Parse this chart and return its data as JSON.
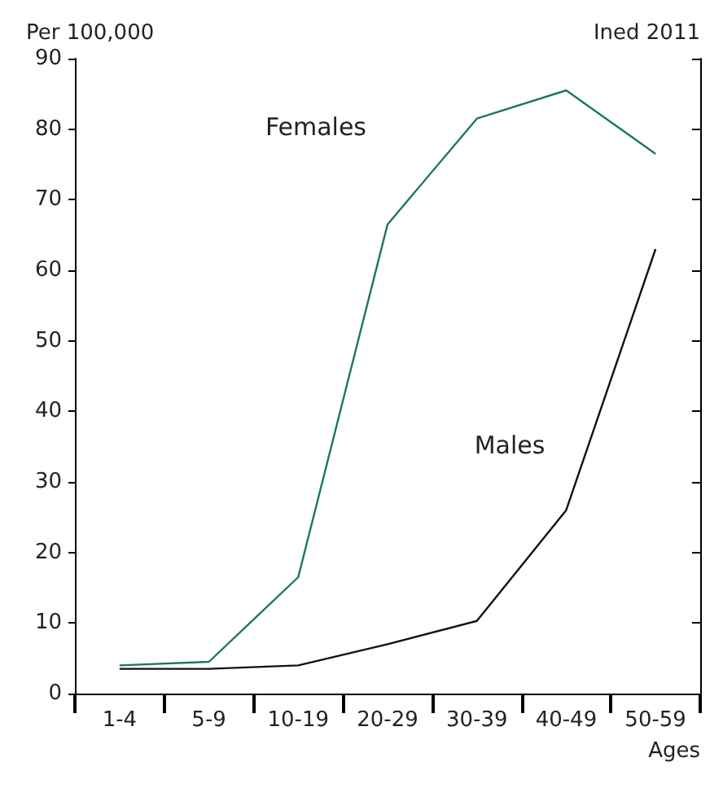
{
  "chart_data": {
    "type": "line",
    "ylabel": "Per 100,000",
    "xlabel": "Ages",
    "annotations": [
      "Ined 2011"
    ],
    "categories": [
      "1-4",
      "5-9",
      "10-19",
      "20-29",
      "30-39",
      "40-49",
      "50-59"
    ],
    "series": [
      {
        "name": "Females",
        "color": "#1a7a55",
        "values": [
          4,
          4.5,
          16.5,
          66.5,
          81.5,
          85.5,
          76.5
        ]
      },
      {
        "name": "Males",
        "color": "#111111",
        "values": [
          3.5,
          3.5,
          4,
          7,
          10.3,
          26,
          63
        ]
      }
    ],
    "ylim": [
      0,
      90
    ],
    "yticks": [
      0,
      10,
      20,
      30,
      40,
      50,
      60,
      70,
      80,
      90
    ],
    "grid": false,
    "legend": false,
    "marker": "none",
    "line_style": "solid"
  }
}
